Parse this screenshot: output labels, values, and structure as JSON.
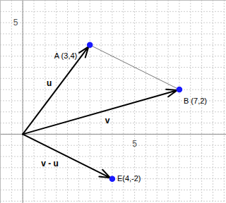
{
  "chart_data": {
    "type": "vector",
    "xlim": [
      -1,
      9.1
    ],
    "ylim": [
      -3.1,
      6
    ],
    "xticks": [
      5
    ],
    "yticks": [
      5
    ],
    "grid": true,
    "grid_step": 0.5,
    "color": "#1a1aff",
    "points": [
      {
        "name": "A",
        "x": 3,
        "y": 4,
        "label": "A (3,4)"
      },
      {
        "name": "B",
        "x": 7,
        "y": 2,
        "label": "B (7,2)"
      },
      {
        "name": "E",
        "x": 4,
        "y": -2,
        "label": "E(4,-2)"
      }
    ],
    "vectors": [
      {
        "label": "u",
        "x": 3,
        "y": 4,
        "color": "#000000"
      },
      {
        "label": "v",
        "x": 7,
        "y": 2,
        "color": "#000000"
      },
      {
        "label": "v - u",
        "x": 4,
        "y": -2,
        "color": "#000000"
      }
    ],
    "segments": [
      {
        "from": "A",
        "to": "B",
        "line_style": "dotted"
      }
    ]
  }
}
